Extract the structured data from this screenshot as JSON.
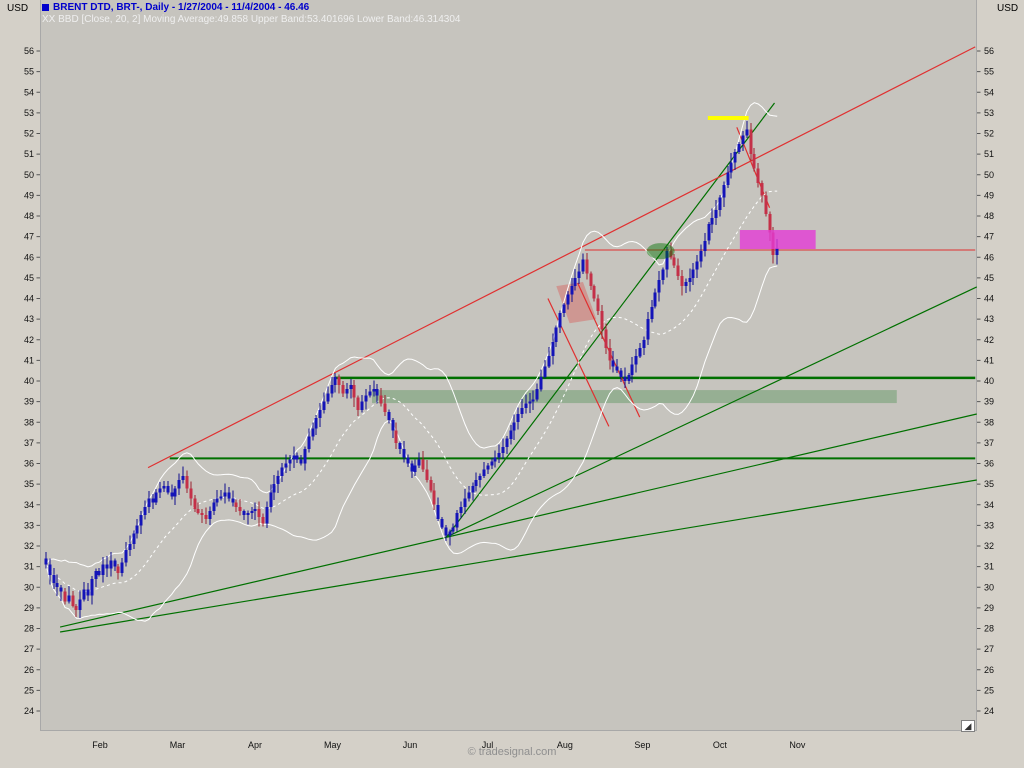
{
  "header": {
    "title": "BRENT DTD, BRT-, Daily - 1/27/2004 - 11/4/2004 - 46.46",
    "indicator": "XX BBD [Close, 20, 2] Moving Average:49.858 Upper Band:53.401696 Lower Band:46.314304"
  },
  "axes": {
    "left_currency": "USD",
    "right_currency": "USD"
  },
  "footer": {
    "watermark": "© tradesignal.com",
    "resize_glyph": "◢"
  },
  "chart_data": {
    "type": "candlestick",
    "symbol": "BRENT DTD, BRT-",
    "interval": "Daily",
    "date_range": [
      "1/27/2004",
      "11/4/2004"
    ],
    "last_price": 46.46,
    "indicator": {
      "name": "BBD",
      "params": "Close, 20, 2",
      "moving_average": 49.858,
      "upper_band": 53.401696,
      "lower_band": 46.314304
    },
    "y_axis": {
      "currency": "USD",
      "min": 24,
      "max": 56,
      "step": 1,
      "tick_labels": [
        24,
        25,
        26,
        27,
        28,
        29,
        30,
        31,
        32,
        33,
        34,
        35,
        36,
        37,
        38,
        39,
        40,
        41,
        42,
        43,
        44,
        45,
        46,
        47,
        48,
        49,
        50,
        51,
        52,
        53,
        54,
        55,
        56
      ]
    },
    "x_axis": {
      "months": [
        "Feb",
        "Mar",
        "Apr",
        "May",
        "Jun",
        "Jul",
        "Aug",
        "Sep",
        "Oct",
        "Nov"
      ]
    },
    "first_open": 31.4,
    "closes": [
      31.1,
      30.6,
      30.2,
      30.0,
      29.8,
      29.3,
      29.6,
      29.1,
      28.9,
      29.4,
      29.9,
      29.6,
      30.4,
      30.8,
      30.6,
      31.1,
      30.9,
      31.3,
      31.0,
      30.7,
      31.2,
      31.8,
      32.1,
      32.6,
      33.0,
      33.5,
      33.9,
      34.3,
      34.1,
      34.6,
      34.8,
      34.9,
      34.6,
      34.4,
      34.8,
      35.2,
      35.4,
      34.8,
      34.3,
      33.8,
      33.6,
      33.5,
      33.3,
      33.7,
      34.1,
      34.3,
      34.4,
      34.6,
      34.3,
      34.1,
      33.9,
      33.7,
      33.5,
      33.6,
      33.7,
      33.8,
      33.4,
      33.1,
      33.9,
      34.6,
      35.0,
      35.4,
      35.8,
      36.0,
      36.2,
      36.4,
      36.2,
      36.0,
      36.7,
      37.3,
      37.7,
      38.2,
      38.6,
      39.0,
      39.4,
      39.8,
      40.2,
      39.8,
      39.4,
      39.6,
      39.8,
      39.2,
      38.6,
      39.0,
      39.3,
      39.5,
      39.6,
      39.3,
      38.9,
      38.5,
      38.1,
      37.6,
      37.0,
      36.7,
      36.3,
      36.0,
      35.6,
      35.9,
      36.2,
      35.7,
      35.2,
      34.7,
      34.0,
      33.3,
      32.9,
      32.5,
      32.7,
      32.9,
      33.6,
      33.9,
      34.3,
      34.6,
      34.9,
      35.2,
      35.4,
      35.7,
      35.9,
      36.1,
      36.3,
      36.5,
      36.8,
      37.2,
      37.6,
      38.0,
      38.4,
      38.7,
      38.9,
      39.0,
      39.1,
      39.6,
      40.2,
      40.7,
      41.2,
      41.9,
      42.6,
      43.3,
      43.7,
      44.2,
      44.6,
      45.0,
      45.3,
      45.9,
      45.2,
      44.6,
      44.0,
      43.4,
      42.5,
      41.6,
      41.0,
      40.7,
      40.5,
      40.2,
      40.0,
      40.3,
      40.8,
      41.2,
      41.6,
      42.0,
      43.0,
      43.6,
      44.3,
      44.9,
      45.4,
      46.3,
      46.0,
      45.6,
      45.1,
      44.6,
      44.8,
      45.0,
      45.4,
      45.8,
      46.3,
      46.8,
      47.6,
      47.9,
      48.3,
      48.9,
      49.5,
      50.1,
      50.6,
      51.1,
      51.5,
      51.9,
      52.2,
      51.0,
      50.3,
      49.6,
      49.0,
      48.1,
      47.2,
      46.1,
      46.46
    ],
    "red_days": [
      5,
      7,
      8,
      19,
      37,
      38,
      39,
      40,
      41,
      42,
      50,
      51,
      56,
      57,
      77,
      78,
      81,
      82,
      88,
      89,
      92,
      99,
      100,
      101,
      102,
      142,
      143,
      144,
      145,
      146,
      147,
      148,
      164,
      165,
      166,
      167,
      185,
      186,
      187,
      188,
      189,
      190,
      191
    ],
    "overlays": {
      "red_trendline": {
        "from": {
          "day": 26.8,
          "price": 35.8
        },
        "to": {
          "day": 244.0,
          "price": 56.2
        }
      },
      "red_hline": {
        "price": 46.35,
        "from_day": 141.5,
        "to_day": 244.0
      },
      "red_flag_lines": [
        {
          "from": {
            "day": 131.8,
            "price": 44.0
          },
          "to": {
            "day": 147.8,
            "price": 37.8
          }
        },
        {
          "from": {
            "day": 139.6,
            "price": 44.75
          },
          "to": {
            "day": 155.9,
            "price": 38.25
          }
        }
      ],
      "red_top_line": {
        "from": {
          "day": 181.4,
          "price": 52.3
        },
        "to": {
          "day": 190.0,
          "price": 48.4
        }
      },
      "red_flag_fill": [
        [
          134,
          44.6
        ],
        [
          141,
          44.8
        ],
        [
          144.5,
          43.0
        ],
        [
          137.5,
          42.8
        ]
      ],
      "green_hlines": [
        {
          "price": 40.15,
          "from_day": 75.9,
          "to_day": 244.0,
          "width": 2.5
        },
        {
          "price": 36.25,
          "from_day": 32.5,
          "to_day": 244.0,
          "width": 2
        }
      ],
      "green_trendlines": [
        {
          "from": {
            "day": 3.7,
            "price": 28.07
          },
          "to": {
            "day": 244.4,
            "price": 38.4
          }
        },
        {
          "from": {
            "day": 3.7,
            "price": 27.83
          },
          "to": {
            "day": 244.4,
            "price": 35.2
          }
        },
        {
          "from": {
            "day": 105.2,
            "price": 32.44
          },
          "to": {
            "day": 191.3,
            "price": 53.48
          }
        },
        {
          "from": {
            "day": 105.2,
            "price": 32.44
          },
          "to": {
            "day": 244.4,
            "price": 44.56
          }
        }
      ],
      "green_band": {
        "from_day": 85.6,
        "to_day": 223.4,
        "price_top": 39.56,
        "price_bottom": 38.93
      },
      "green_ellipse": {
        "day": 161.4,
        "price": 46.3
      },
      "magenta_zone": {
        "from_day": 182.2,
        "to_day": 202.1,
        "price_top": 47.32,
        "price_bottom": 46.4
      },
      "yellow_segment": {
        "price": 52.75,
        "from_day": 173.8,
        "to_day": 184.5
      }
    },
    "colors": {
      "up": "#1414b8",
      "down": "#c43048",
      "up_wick": "#0d0d8c",
      "down_wick": "#992230",
      "band_line": "#ffffff",
      "red_line": "#e03030",
      "green_line": "#007000",
      "band_fill": "#6f9e6f",
      "magenta": "#e33bd6",
      "yellow": "#ffff00",
      "bg_plot": "#c6c4be",
      "bg_outer": "#d4d0c8"
    }
  }
}
